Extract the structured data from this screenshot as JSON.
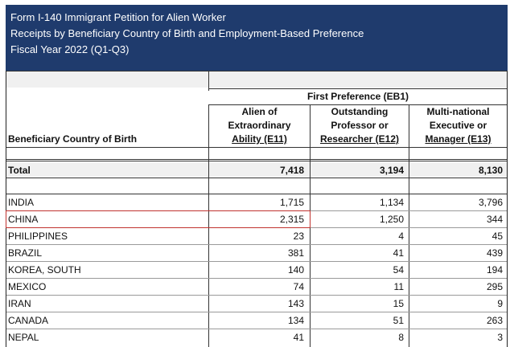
{
  "header": {
    "line1": "Form I-140 Immigrant Petition for Alien Worker",
    "line2": "Receipts by Beneficiary Country of Birth and Employment-Based Preference",
    "line3": "Fiscal Year 2022 (Q1-Q3)"
  },
  "table": {
    "group_header": "First Preference (EB1)",
    "country_header": "Beneficiary Country of Birth",
    "columns": [
      {
        "line1": "Alien of",
        "line2": "Extraordinary",
        "line3": "Ability (E11)"
      },
      {
        "line1": "Outstanding",
        "line2": "Professor or",
        "line3": "Researcher (E12)"
      },
      {
        "line1": "Multi-national",
        "line2": "Executive or",
        "line3": "Manager (E13)"
      }
    ],
    "total": {
      "label": "Total",
      "e11": "7,418",
      "e12": "3,194",
      "e13": "8,130"
    },
    "rows": [
      {
        "country": "INDIA",
        "e11": "1,715",
        "e12": "1,134",
        "e13": "3,796"
      },
      {
        "country": "CHINA",
        "e11": "2,315",
        "e12": "1,250",
        "e13": "344"
      },
      {
        "country": "PHILIPPINES",
        "e11": "23",
        "e12": "4",
        "e13": "45"
      },
      {
        "country": "BRAZIL",
        "e11": "381",
        "e12": "41",
        "e13": "439"
      },
      {
        "country": "KOREA, SOUTH",
        "e11": "140",
        "e12": "54",
        "e13": "194"
      },
      {
        "country": "MEXICO",
        "e11": "74",
        "e12": "11",
        "e13": "295"
      },
      {
        "country": "IRAN",
        "e11": "143",
        "e12": "15",
        "e13": "9"
      },
      {
        "country": "CANADA",
        "e11": "134",
        "e12": "51",
        "e13": "263"
      },
      {
        "country": "NEPAL",
        "e11": "41",
        "e12": "8",
        "e13": "3"
      }
    ]
  },
  "colors": {
    "banner": "#1f3b6d",
    "highlight_border": "#c0322f"
  }
}
